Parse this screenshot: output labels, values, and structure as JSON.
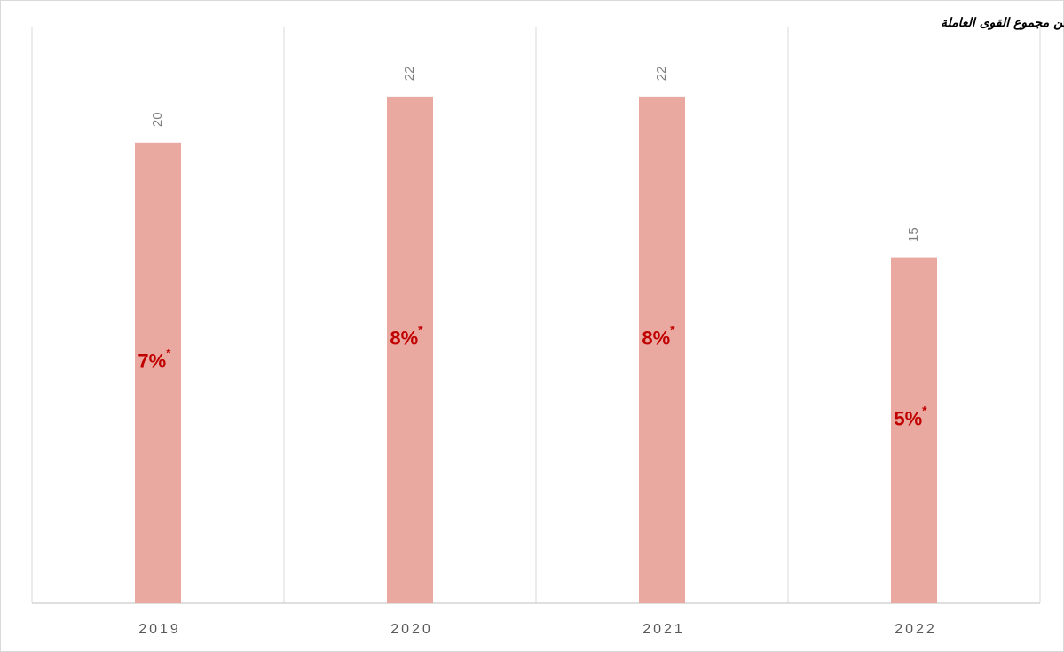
{
  "chart_data": {
    "type": "bar",
    "note": "*٪ من مجموع القوى العاملة",
    "categories": [
      "2019",
      "2020",
      "2021",
      "2022"
    ],
    "values": [
      20,
      22,
      22,
      15
    ],
    "color": "#eaa9a0",
    "share_values": [
      7,
      8,
      8,
      5
    ],
    "share_labels": [
      "7%",
      "8%",
      "8%",
      "5%"
    ],
    "share_marker": "*",
    "ylim": [
      0,
      25
    ]
  }
}
